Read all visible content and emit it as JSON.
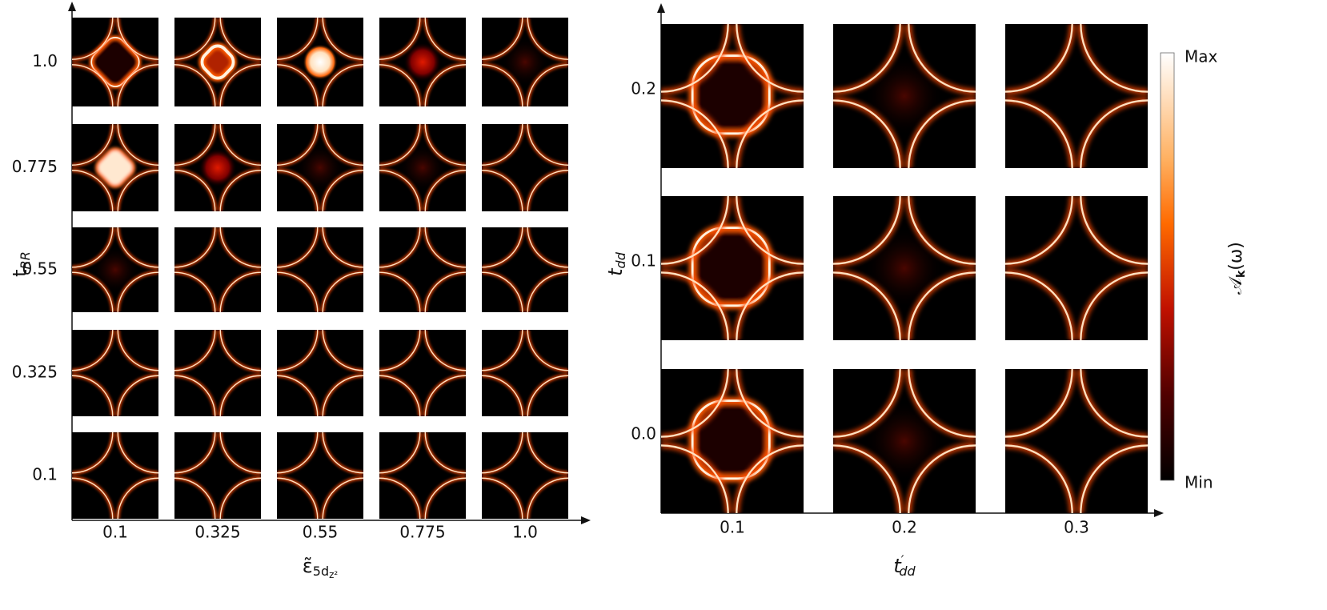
{
  "left_panel": {
    "x_label": {
      "base": "ε̃",
      "sub": "5d",
      "subsub": "z²"
    },
    "y_label": {
      "base": "t",
      "sub": "RR"
    },
    "x_categories": [
      "0.1",
      "0.325",
      "0.55",
      "0.775",
      "1.0"
    ],
    "y_categories": [
      "0.1",
      "0.325",
      "0.55",
      "0.775",
      "1.0"
    ]
  },
  "right_panel": {
    "x_label": {
      "base": "t",
      "sup": "′",
      "sub": "dd"
    },
    "y_label": {
      "base": "t",
      "sub": "dd"
    },
    "x_categories": [
      "0.1",
      "0.2",
      "0.3"
    ],
    "y_categories": [
      "0.0",
      "0.1",
      "0.2"
    ]
  },
  "colorbar": {
    "label": "𝒜",
    "label_sub": "k",
    "label_rest": "(ω)",
    "max_label": "Max",
    "min_label": "Min"
  }
}
